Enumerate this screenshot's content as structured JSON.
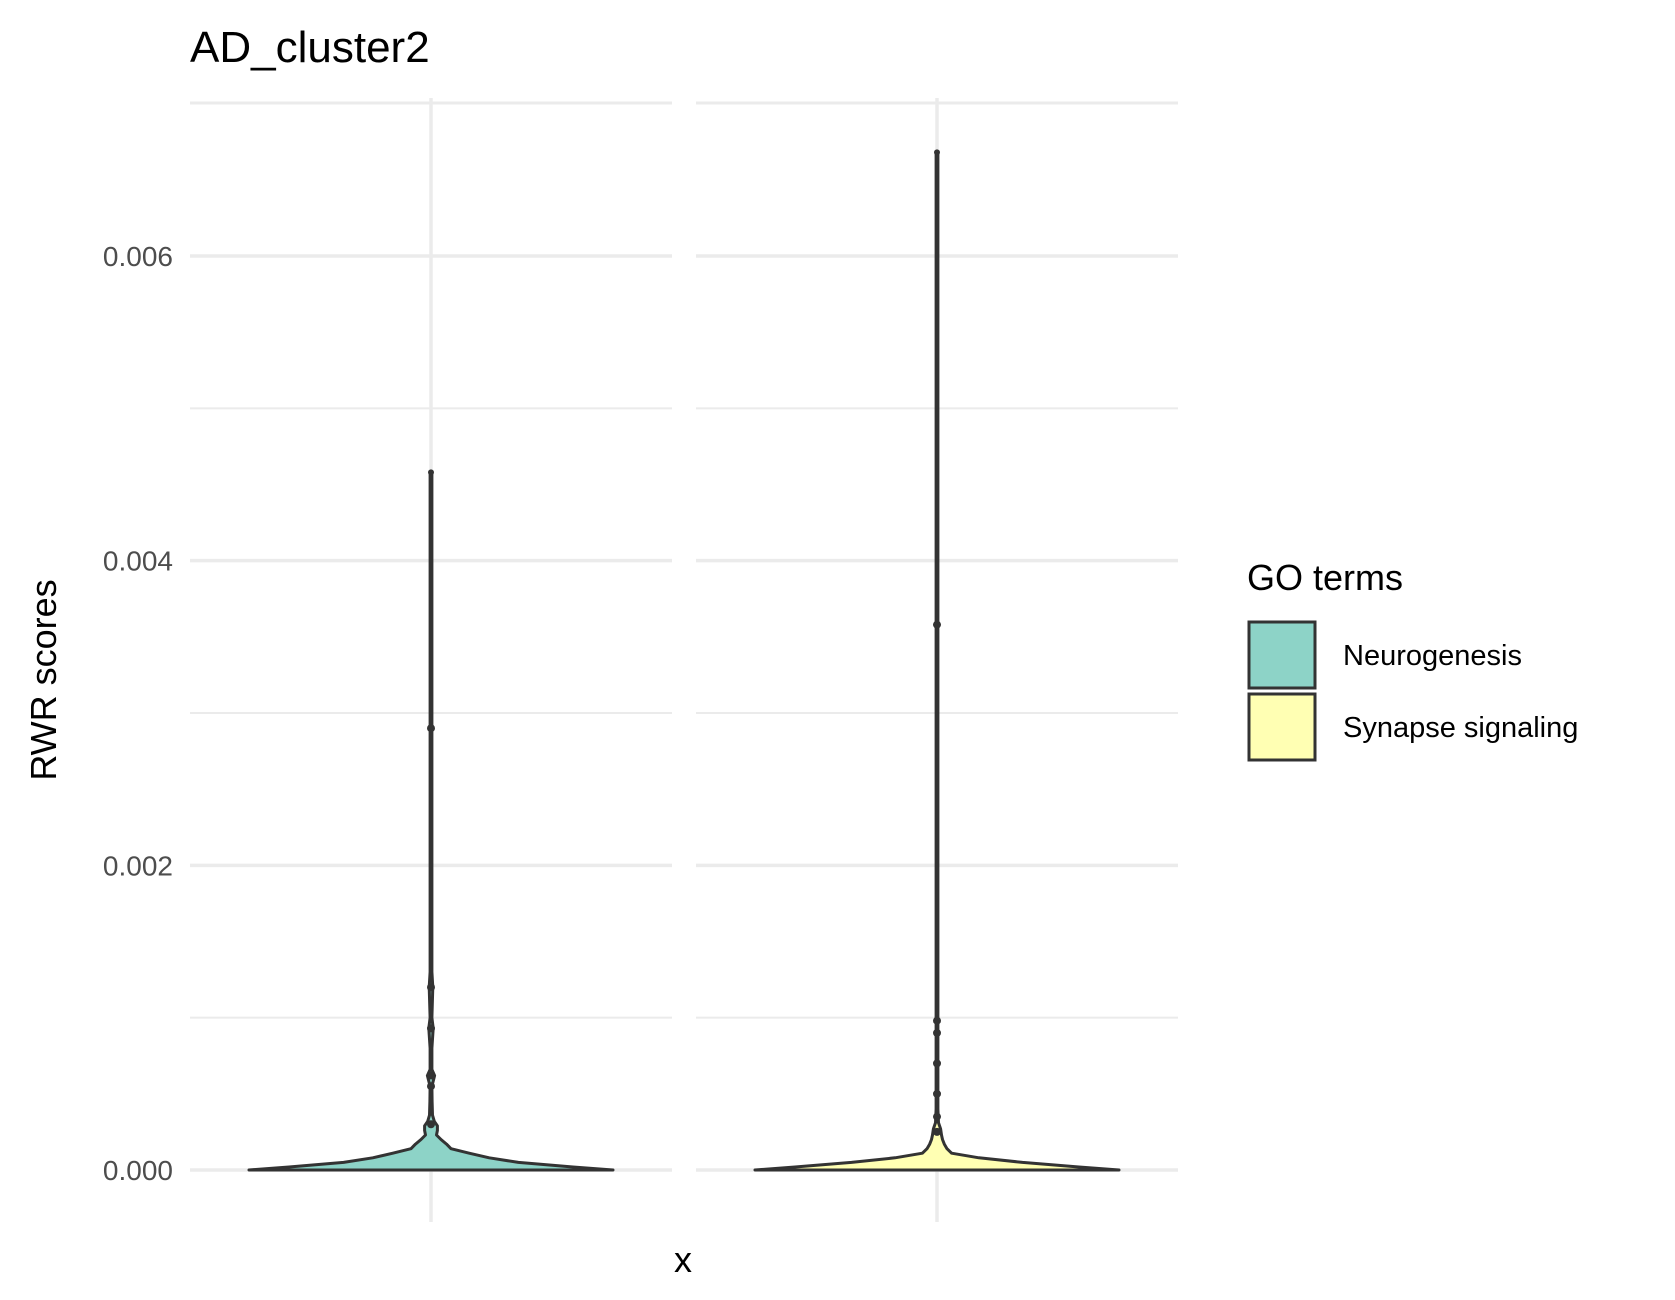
{
  "chart_data": {
    "type": "violin",
    "title": "AD_cluster2",
    "xlabel": "x",
    "ylabel": "RWR scores",
    "ylim": [
      -0.00025,
      0.007
    ],
    "yticks": [
      0.0,
      0.002,
      0.004,
      0.006
    ],
    "ytick_labels": [
      "0.000",
      "0.002",
      "0.004",
      "0.006"
    ],
    "grid": true,
    "facets": 2,
    "legend": {
      "title": "GO terms",
      "placement": "right",
      "entries": [
        {
          "label": "Neurogenesis",
          "color": "#8dd3c7"
        },
        {
          "label": "Synapse signaling",
          "color": "#ffffb3"
        }
      ]
    },
    "series": [
      {
        "name": "Neurogenesis",
        "color": "#8dd3c7",
        "max": 0.00458,
        "points": [
          0.0029,
          0.0012,
          0.00093,
          0.00062,
          0.00055,
          0.0003
        ],
        "profile": [
          [
            0.0,
            1.0
          ],
          [
            2e-05,
            0.78
          ],
          [
            5e-05,
            0.48
          ],
          [
            8e-05,
            0.32
          ],
          [
            0.00011,
            0.21
          ],
          [
            0.00014,
            0.11
          ],
          [
            0.00017,
            0.085
          ],
          [
            0.0002,
            0.055
          ],
          [
            0.00023,
            0.03
          ],
          [
            0.00026,
            0.035
          ],
          [
            0.00029,
            0.035
          ],
          [
            0.00032,
            0.018
          ],
          [
            0.00036,
            0.008
          ],
          [
            0.00045,
            0.006
          ],
          [
            0.00055,
            0.005
          ],
          [
            0.00062,
            0.02
          ],
          [
            0.00066,
            0.005
          ],
          [
            0.0008,
            0.005
          ],
          [
            0.00093,
            0.012
          ],
          [
            0.001,
            0.005
          ],
          [
            0.0012,
            0.01
          ],
          [
            0.0013,
            0.005
          ],
          [
            0.00458,
            0.005
          ]
        ]
      },
      {
        "name": "Synapse signaling",
        "color": "#ffffb3",
        "max": 0.00668,
        "points": [
          0.00358,
          0.00098,
          0.0009,
          0.0007,
          0.0005,
          0.00035,
          0.00025
        ],
        "profile": [
          [
            0.0,
            1.0
          ],
          [
            2e-05,
            0.78
          ],
          [
            5e-05,
            0.47
          ],
          [
            8e-05,
            0.23
          ],
          [
            0.00011,
            0.08
          ],
          [
            0.00014,
            0.055
          ],
          [
            0.00017,
            0.04
          ],
          [
            0.0002,
            0.03
          ],
          [
            0.00023,
            0.025
          ],
          [
            0.00027,
            0.02
          ],
          [
            0.00031,
            0.008
          ],
          [
            0.0004,
            0.005
          ],
          [
            0.00668,
            0.005
          ]
        ]
      }
    ]
  }
}
